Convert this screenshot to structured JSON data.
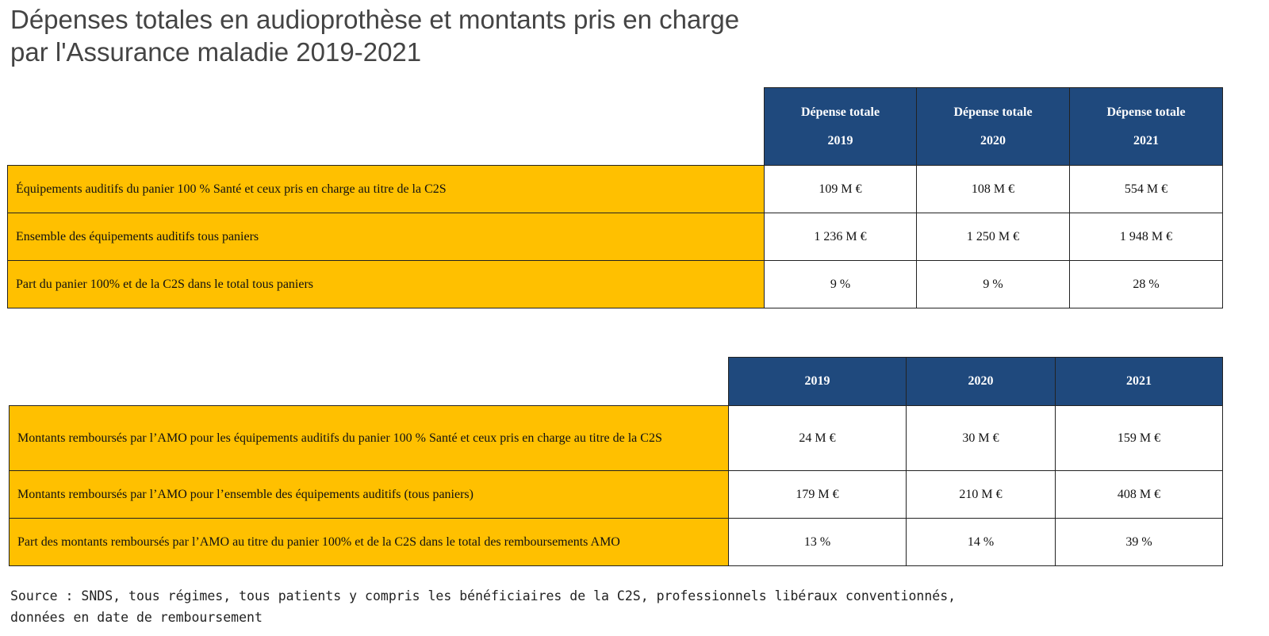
{
  "title": {
    "line1": "Dépenses totales en audioprothèse et montants pris en charge",
    "line2": "par l'Assurance maladie 2019-2021"
  },
  "table1": {
    "headers": [
      {
        "line1": "Dépense totale",
        "line2": "2019"
      },
      {
        "line1": "Dépense totale",
        "line2": "2020"
      },
      {
        "line1": "Dépense totale",
        "line2": "2021"
      }
    ],
    "rows": [
      {
        "label": "Équipements auditifs du panier 100 % Santé et ceux pris en charge au titre de la C2S",
        "values": [
          "109 M €",
          "108 M €",
          "554 M €"
        ]
      },
      {
        "label": "Ensemble des équipements auditifs tous paniers",
        "values": [
          "1 236 M €",
          "1 250 M €",
          "1 948 M €"
        ]
      },
      {
        "label": "Part du panier 100% et de la C2S dans le total tous paniers",
        "values": [
          "9 %",
          "9 %",
          "28 %"
        ]
      }
    ]
  },
  "table2": {
    "headers": [
      "2019",
      "2020",
      "2021"
    ],
    "rows": [
      {
        "label": "Montants remboursés par l’AMO pour les équipements auditifs du panier 100 % Santé et ceux pris en charge au titre de la C2S",
        "values": [
          "24 M €",
          "30 M €",
          "159 M €"
        ]
      },
      {
        "label": "Montants remboursés par l’AMO pour l’ensemble des équipements auditifs (tous paniers)",
        "values": [
          "179 M €",
          "210 M €",
          "408 M €"
        ]
      },
      {
        "label": "Part des montants remboursés par l’AMO au titre du panier 100% et de la C2S dans le total des remboursements AMO",
        "values": [
          "13 %",
          "14 %",
          "39 %"
        ]
      }
    ]
  },
  "source": {
    "line1": "Source : SNDS, tous régimes, tous patients y compris les bénéficiaires de la C2S, professionnels libéraux conventionnés,",
    "line2": "données en date de remboursement"
  },
  "colors": {
    "header_bg": "#1f497d",
    "label_bg": "#ffc000",
    "title_text": "#444444"
  }
}
